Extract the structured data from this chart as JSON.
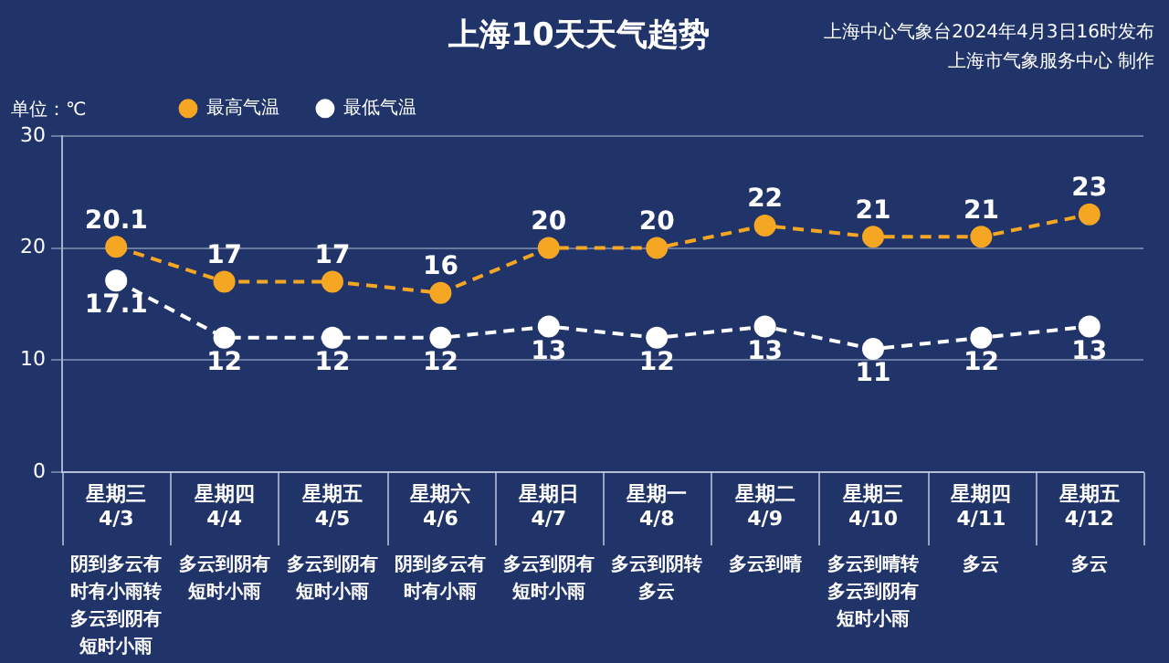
{
  "chart_data": {
    "type": "line",
    "title": "上海10天天气趋势",
    "ylabel": "单位：℃",
    "categories": [
      "星期三\n4/3",
      "星期四\n4/4",
      "星期五\n4/5",
      "星期六\n4/6",
      "星期日\n4/7",
      "星期一\n4/8",
      "星期二\n4/9",
      "星期三\n4/10",
      "星期四\n4/11",
      "星期五\n4/12"
    ],
    "series": [
      {
        "name": "最高气温",
        "color": "#f5a623",
        "values": [
          20.1,
          17,
          17,
          16,
          20,
          20,
          22,
          21,
          21,
          23
        ]
      },
      {
        "name": "最低气温",
        "color": "#ffffff",
        "values": [
          17.1,
          12,
          12,
          12,
          13,
          12,
          13,
          11,
          12,
          13
        ]
      }
    ],
    "ylim": [
      0,
      30
    ],
    "yticks": [
      0,
      10,
      20,
      30
    ],
    "grid": "y",
    "legend": "top left",
    "marker": "circle",
    "line_style": "dashed",
    "data_labels": true,
    "annotations": [
      "上海中心气象台2024年4月3日16时发布",
      "上海市气象服务中心 制作",
      "阴到多云有时有小雨转多云到阴有短时小雨",
      "多云到阴有短时小雨",
      "多云到阴有短时小雨",
      "阴到多云有时有小雨",
      "多云到阴有短时小雨",
      "多云到阴转多云",
      "多云到晴",
      "多云到晴转多云到阴有短时小雨",
      "多云",
      "多云"
    ]
  }
}
